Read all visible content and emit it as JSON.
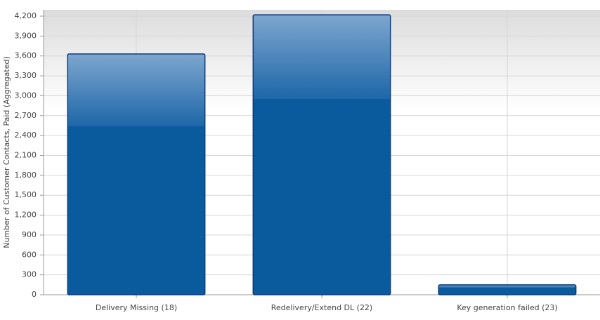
{
  "chart_data": {
    "type": "bar",
    "y_label": "Number of Customer Contacts, Paid (Aggregated)",
    "categories": [
      "Delivery Missing (18)",
      "Redelivery/Extend DL (22)",
      "Key generation failed (23)"
    ],
    "values": [
      3630,
      4220,
      150
    ],
    "color": "#0a5a9e",
    "ylim": [
      0,
      4200
    ],
    "yticks": [
      0,
      300,
      600,
      900,
      {
        "value": 1200,
        "label": "1,200"
      },
      {
        "value": 1500,
        "label": "1,500"
      },
      {
        "value": 1800,
        "label": "1,800"
      },
      {
        "value": 2100,
        "label": "2,100"
      },
      {
        "value": 2400,
        "label": "2,400"
      },
      {
        "value": 2700,
        "label": "2,700"
      },
      {
        "value": 3000,
        "label": "3,000"
      },
      {
        "value": 3300,
        "label": "3,300"
      },
      {
        "value": 3600,
        "label": "3,600"
      },
      {
        "value": 3900,
        "label": "3,900"
      },
      {
        "value": 4200,
        "label": "4,200"
      }
    ],
    "grid": true
  }
}
